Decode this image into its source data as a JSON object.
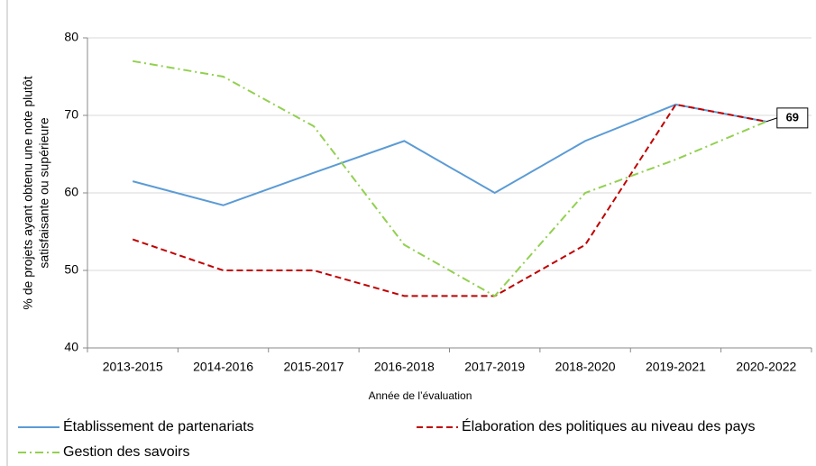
{
  "chart_data": {
    "type": "line",
    "ylabel": [
      "% de projets ayant obtenu une note plutôt",
      "satisfaisante ou supérieure"
    ],
    "xlabel": "Année de l’évaluation",
    "categories": [
      "2013-2015",
      "2014-2016",
      "2015-2017",
      "2016-2018",
      "2017-2019",
      "2018-2020",
      "2019-2021",
      "2020-2022"
    ],
    "series": [
      {
        "name": "Établissement de partenariats",
        "color": "#5b9bd5",
        "dash": "solid",
        "values": [
          61.5,
          58.4,
          62.6,
          66.7,
          60,
          66.7,
          71.4,
          69.2
        ],
        "value_labels": [
          null,
          null,
          null,
          null,
          null,
          null,
          null,
          "69"
        ]
      },
      {
        "name": "Élaboration des politiques au niveau des pays",
        "color": "#c00000",
        "dash": "dash",
        "values": [
          54,
          50,
          50,
          46.7,
          46.7,
          53.3,
          71.4,
          69.2
        ]
      },
      {
        "name": "Gestion des savoirs",
        "color": "#92d050",
        "dash": "dashdot",
        "values": [
          77,
          75,
          68.6,
          53.3,
          46.7,
          60,
          64.3,
          69.2
        ]
      }
    ],
    "ylim": [
      40,
      80
    ],
    "yticks": [
      40,
      50,
      60,
      70,
      80
    ],
    "grid": true,
    "legend": "bottom"
  }
}
